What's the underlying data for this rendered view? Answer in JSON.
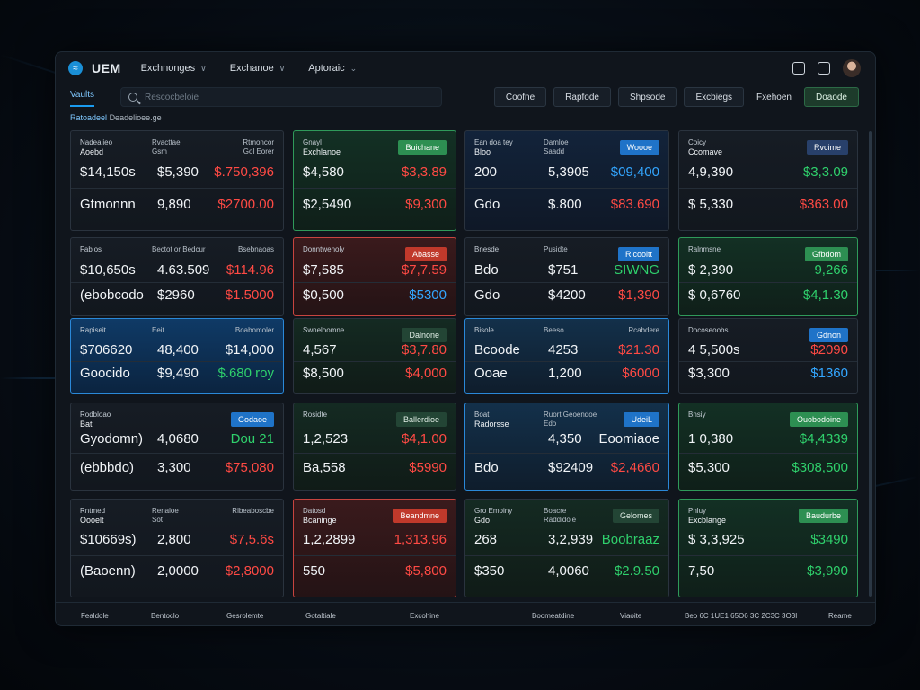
{
  "app": {
    "brand": "UEM"
  },
  "nav": [
    {
      "label": "Exchnonges"
    },
    {
      "label": "Exchanoe"
    },
    {
      "label": "Aptoraic"
    }
  ],
  "subnav": {
    "active_tab": "Vaults",
    "search_placeholder": "Rescocbeloie",
    "filters": [
      "Coofne",
      "Rapfode",
      "Shpsode",
      "Excbiegs",
      "Fxehoen",
      "Doaode"
    ]
  },
  "breadcrumb": {
    "first": "Ratoadeel",
    "rest": "Deadelioee.ge"
  },
  "cards": [
    {
      "h1": "Nadealieo",
      "h1s": "Aoebd",
      "h2": "Rvacttae",
      "h2s": "Gsm",
      "h3": "Rtmoncor",
      "h3s": "Gol Eorer",
      "r1": [
        "$14,150s",
        "$5,390",
        "$.750,396"
      ],
      "r2": [
        "Gtmonnn",
        "9,890",
        "$2700.00"
      ],
      "r1c": "red-t",
      "r2c": "red-t"
    },
    {
      "t": "Gnayl",
      "ts": "Exchlanoe",
      "badge": "Buichane",
      "r1": [
        "$4,580",
        "",
        "$3,3.89"
      ],
      "r2": [
        "$2,5490",
        "",
        "$9,300"
      ],
      "r1c": "red-t",
      "r2c": "red-t",
      "r2a": "grn-t"
    },
    {
      "t": "Ean doa tey",
      "ts": "Bloo",
      "h2": "Damloe",
      "h2s": "Saadd",
      "badge": "Woooe",
      "r1": [
        "200",
        "5,3905",
        "$09,400"
      ],
      "r2": [
        "Gdo",
        "$.800",
        "$83.690"
      ],
      "r1c": "blu-t",
      "r1b": "grn-t",
      "r2b": "grn-t",
      "r2c": "red-t"
    },
    {
      "t": "Coicy",
      "ts": "Ccomave",
      "badge": "Rvcime",
      "r1": [
        "4,9,390",
        "",
        "$3,3.09"
      ],
      "r2": [
        "$ 5,330",
        "",
        "$363.00"
      ],
      "r1c": "grn-t",
      "r2c": "red-t"
    },
    {
      "h1": "Fabios",
      "h2": "Bectot or Bedcur",
      "h3": "Bsebnaoas",
      "r1": [
        "$10,650s",
        "4.63.509",
        "$114.96"
      ],
      "r2": [
        "(ebobcodo",
        "$2960",
        "$1.5000"
      ],
      "r1b": "red-t",
      "r1c": "red-t",
      "r2c": "red-t"
    },
    {
      "t": "Donntwenoly",
      "badge": "Abasse",
      "r1": [
        "$7,585",
        "",
        "$7,7.59"
      ],
      "r2": [
        "$0,500",
        "",
        "$5300"
      ],
      "r1c": "red-t",
      "r2c": "blu-t"
    },
    {
      "t": "Bnesde",
      "h2": "Pusidte",
      "badge": "Rlcooltt",
      "r1": [
        "Bdo",
        "$751",
        "SIWNG"
      ],
      "r2": [
        "Gdo",
        "$4200",
        "$1,390"
      ],
      "r1c": "grn-t",
      "r2c": "red-t"
    },
    {
      "t": "Ralnmsne",
      "badge": "Gfbdom",
      "r1": [
        "$ 2,390",
        "",
        "9,266"
      ],
      "r2": [
        "$ 0,6760",
        "",
        "$4,1.30"
      ],
      "r1c": "grn-t",
      "r2c": "grn-t"
    },
    {
      "t": "Rapiseit",
      "h2": "Eeit",
      "h3": "Boabomoler",
      "r1": [
        "$706620",
        "48,400",
        "$14,000"
      ],
      "r2": [
        "Goocido",
        "$9,490",
        "$.680 roy"
      ],
      "r1b": "red-t",
      "r2c": "grn-t"
    },
    {
      "t": "Swneloomne",
      "badge": "Dalnone",
      "r1": [
        "4,567",
        "",
        "$3,7.80"
      ],
      "r2": [
        "$8,500",
        "",
        "$4,000"
      ],
      "r1c": "red-t",
      "r2c": "red-t"
    },
    {
      "t": "Bisole",
      "h2": "Beeso",
      "h3": "Rcabdere",
      "r1": [
        "Bcoode",
        "4253",
        "$21.30"
      ],
      "r2": [
        "Ooae",
        "1,200",
        "$6000"
      ],
      "r1c": "red-t",
      "r2c": "red-t"
    },
    {
      "t": "Docoseoobs",
      "badge": "Gdnon",
      "r1": [
        "4 5,500s",
        "",
        "$2090"
      ],
      "r2": [
        "$3,300",
        "",
        "$1360"
      ],
      "r1c": "red-t",
      "r2c": "blu-t"
    },
    {
      "t": "Rodbloao",
      "ts": "Bat",
      "badge": "Godaoe",
      "r1": [
        "Gyodomn)",
        "4,0680",
        "Dou 21"
      ],
      "r2": [
        "(ebbbdo)",
        "3,300",
        "$75,080"
      ],
      "r1c": "grn-t",
      "r2c": "red-t"
    },
    {
      "t": "Rosidte",
      "badge": "Ballerdioe",
      "r1": [
        "1,2,523",
        "",
        "$4,1.00"
      ],
      "r2": [
        "Ba,558",
        "",
        "$5990"
      ],
      "r1a": "grn-t",
      "r1c": "red-t",
      "r2c": "red-t"
    },
    {
      "t": "Boat",
      "ts": "Radorsse",
      "h2": "Ruort Geoendoe",
      "h2s": "Edo",
      "badge": "UdeiL",
      "r1": [
        "",
        "4,350",
        "Eoomiaoe"
      ],
      "r2": [
        "Bdo",
        "$92409",
        "$2,4660"
      ],
      "r2c": "red-t"
    },
    {
      "t": "Bnsiy",
      "badge": "Ouobodoine",
      "r1": [
        "1 0,380",
        "",
        "$4,4339"
      ],
      "r2": [
        "$5,300",
        "",
        "$308,500"
      ],
      "r1c": "grn-t",
      "r2a": "grn-t",
      "r2c": "grn-t"
    },
    {
      "h1": "Rntmed",
      "h1s": "Oooelt",
      "h2": "Renaloe",
      "h2s": "Sot",
      "h3": "Rlbeaboscbe",
      "r1": [
        "$10669s)",
        "2,800",
        "$7,5.6s"
      ],
      "r2": [
        "(Baoenn)",
        "2,0000",
        "$2,8000"
      ],
      "r1c": "red-t",
      "r2c": "red-t"
    },
    {
      "t": "Datosd",
      "ts": "Bcaninge",
      "badge": "Beandmne",
      "r1": [
        "1,2,2899",
        "",
        "1,313.96"
      ],
      "r2": [
        "550",
        "",
        "$5,800"
      ],
      "r1c": "red-t",
      "r2c": "red-t"
    },
    {
      "t": "Gro Emoiny",
      "ts": "Gdo",
      "h2": "Boacre",
      "h2s": "Raddidole",
      "badge": "Gelomes",
      "r1": [
        "268",
        "3,2,939",
        "Boobraaz"
      ],
      "r2": [
        "$350",
        "4,0060",
        "$2.9.50"
      ],
      "r1b": "grn-t",
      "r1c": "grn-t",
      "r2b": "grn-t",
      "r2c": "grn-t"
    },
    {
      "t": "Pnluy",
      "ts": "Excblange",
      "badge": "Baudurbe",
      "r1": [
        "$ 3,3,925",
        "",
        "$3490"
      ],
      "r2": [
        "7,50",
        "",
        "$3,990"
      ],
      "r1a": "grn-t",
      "r1c": "grn-t",
      "r2c": "grn-t"
    }
  ],
  "footer": {
    "a": "Fealdole",
    "b": "Bentoclo",
    "c": "Gesrolemte",
    "d": "Gotaltiale",
    "e": "Excohine",
    "f": "Boomeatdine",
    "g": "Viaoite",
    "h": "Beo 6C 1UE1 65O6 3C 2C3C 3O3I",
    "i": "Reame"
  },
  "colors": {
    "accent": "#1a9bef",
    "up": "#2fd06c",
    "down": "#ff4a44",
    "panel": "#10151c"
  }
}
